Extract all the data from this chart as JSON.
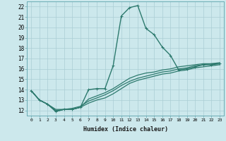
{
  "xlabel": "Humidex (Indice chaleur)",
  "ylabel": "",
  "background_color": "#cce8ec",
  "grid_color": "#aacdd4",
  "line_color": "#2d7a6e",
  "xlim": [
    -0.5,
    23.5
  ],
  "ylim": [
    11.5,
    22.5
  ],
  "xticks": [
    0,
    1,
    2,
    3,
    4,
    5,
    6,
    7,
    8,
    9,
    10,
    11,
    12,
    13,
    14,
    15,
    16,
    17,
    18,
    19,
    20,
    21,
    22,
    23
  ],
  "yticks": [
    12,
    13,
    14,
    15,
    16,
    17,
    18,
    19,
    20,
    21,
    22
  ],
  "series": [
    {
      "x": [
        0,
        1,
        2,
        3,
        4,
        5,
        6,
        7,
        8,
        9,
        10,
        11,
        12,
        13,
        14,
        15,
        16,
        17,
        18,
        19,
        20,
        21,
        22,
        23
      ],
      "y": [
        13.9,
        13.0,
        12.6,
        11.9,
        12.1,
        12.1,
        12.3,
        14.0,
        14.1,
        14.1,
        16.3,
        21.1,
        21.9,
        22.1,
        19.9,
        19.3,
        18.1,
        17.3,
        15.9,
        16.0,
        16.2,
        16.4,
        16.4,
        16.5
      ],
      "marker": "+",
      "linewidth": 1.0,
      "markersize": 3.0
    },
    {
      "x": [
        0,
        1,
        2,
        3,
        4,
        5,
        6,
        7,
        8,
        9,
        10,
        11,
        12,
        13,
        14,
        15,
        16,
        17,
        18,
        19,
        20,
        21,
        22,
        23
      ],
      "y": [
        13.9,
        13.0,
        12.6,
        12.1,
        12.1,
        12.2,
        12.4,
        12.9,
        13.2,
        13.5,
        13.9,
        14.4,
        14.8,
        15.1,
        15.3,
        15.5,
        15.7,
        15.8,
        16.0,
        16.1,
        16.3,
        16.4,
        16.5,
        16.5
      ],
      "marker": null,
      "linewidth": 0.9,
      "markersize": 0
    },
    {
      "x": [
        0,
        1,
        2,
        3,
        4,
        5,
        6,
        7,
        8,
        9,
        10,
        11,
        12,
        13,
        14,
        15,
        16,
        17,
        18,
        19,
        20,
        21,
        22,
        23
      ],
      "y": [
        13.9,
        13.0,
        12.6,
        12.0,
        12.1,
        12.1,
        12.3,
        13.1,
        13.4,
        13.7,
        14.1,
        14.6,
        15.1,
        15.4,
        15.6,
        15.7,
        15.9,
        16.0,
        16.2,
        16.3,
        16.4,
        16.5,
        16.5,
        16.6
      ],
      "marker": null,
      "linewidth": 0.9,
      "markersize": 0
    },
    {
      "x": [
        0,
        1,
        2,
        3,
        4,
        5,
        6,
        7,
        8,
        9,
        10,
        11,
        12,
        13,
        14,
        15,
        16,
        17,
        18,
        19,
        20,
        21,
        22,
        23
      ],
      "y": [
        13.9,
        13.0,
        12.6,
        11.9,
        12.1,
        12.1,
        12.3,
        12.7,
        13.0,
        13.2,
        13.6,
        14.1,
        14.6,
        14.9,
        15.1,
        15.3,
        15.5,
        15.6,
        15.8,
        15.9,
        16.1,
        16.2,
        16.3,
        16.4
      ],
      "marker": null,
      "linewidth": 0.9,
      "markersize": 0
    }
  ]
}
